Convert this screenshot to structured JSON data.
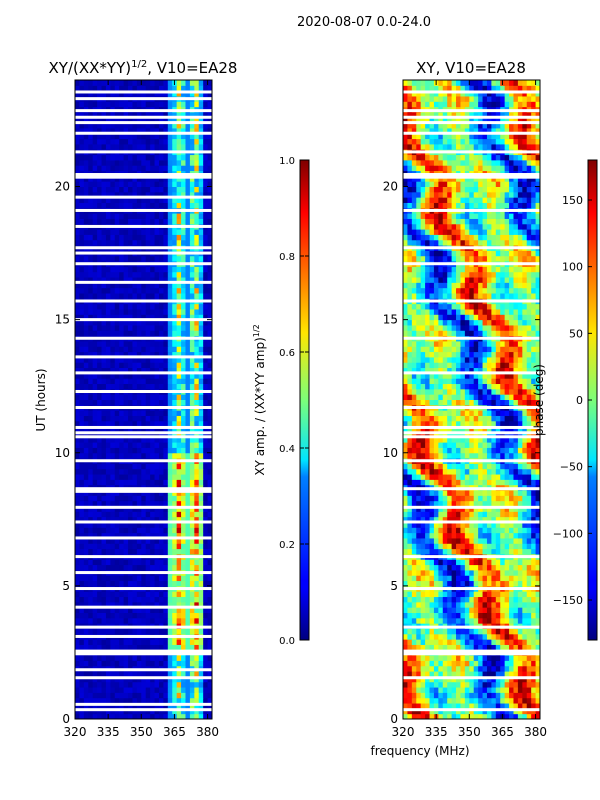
{
  "figure": {
    "suptitle": "2020-08-07 0.0-24.0",
    "shared_xlabel": "frequency (MHz)"
  },
  "chart_data": [
    {
      "type": "heatmap",
      "title": "XY/(XX*YY)^1/2, V10=EA28",
      "title_main": "XY/(XX*YY)",
      "title_sup": "1/2",
      "title_tail": ", V10=EA28",
      "xlabel": "frequency (MHz)",
      "ylabel": "UT (hours)",
      "xlim": [
        320,
        382
      ],
      "ylim": [
        0,
        24
      ],
      "xticks": [
        320,
        335,
        350,
        365,
        380
      ],
      "yticks": [
        0,
        5,
        10,
        15,
        20
      ],
      "colorbar": {
        "label": "XY amp. / (XX*YY amp)^1/2",
        "label_main": "XY amp. / (XX*YY amp)",
        "label_sup": "1/2",
        "range": [
          0.0,
          1.0
        ],
        "ticks": [
          "0.0",
          "0.2",
          "0.4",
          "0.6",
          "0.8",
          "1.0"
        ],
        "colormap": "jet"
      },
      "value_description": "low amplitude (~0.05) below 362 MHz; 0.3-0.9 in channels 362-378 MHz",
      "masked_hours": [
        0.35,
        0.55,
        1.55,
        1.85,
        2.45,
        2.55,
        3.1,
        3.45,
        4.2,
        4.9,
        5.5,
        6.1,
        6.8,
        7.4,
        7.95,
        8.55,
        8.65,
        9.7,
        10.6,
        10.75,
        10.95,
        11.7,
        12.3,
        13.0,
        13.6,
        14.3,
        15.0,
        15.7,
        16.4,
        17.1,
        17.5,
        17.7,
        18.5,
        19.1,
        19.6,
        20.35,
        20.45,
        21.3,
        22.0,
        22.4,
        22.6,
        22.85,
        23.3,
        23.55
      ]
    },
    {
      "type": "heatmap",
      "title": "XY, V10=EA28",
      "xlabel": "frequency (MHz)",
      "xlim": [
        320,
        382
      ],
      "ylim": [
        0,
        24
      ],
      "xticks": [
        320,
        335,
        350,
        365,
        380
      ],
      "yticks": [
        0,
        5,
        10,
        15,
        20
      ],
      "colorbar": {
        "label": "phase (deg)",
        "range": [
          -180,
          180
        ],
        "ticks": [
          "−150",
          "−100",
          "−50",
          "0",
          "50",
          "100",
          "150"
        ],
        "tick_values": [
          -150,
          -100,
          -50,
          0,
          50,
          100,
          150
        ],
        "colormap": "jet"
      },
      "value_description": "phase varies across full -180 to 180 deg range with time-dependent structure",
      "masked_hours": [
        0.35,
        1.55,
        2.45,
        2.55,
        3.45,
        4.9,
        6.1,
        7.4,
        7.95,
        8.65,
        9.7,
        10.6,
        10.75,
        10.95,
        11.7,
        13.0,
        14.3,
        15.7,
        17.1,
        17.7,
        19.1,
        20.35,
        20.45,
        21.3,
        22.0,
        22.4,
        22.6,
        22.85,
        23.55
      ]
    }
  ]
}
